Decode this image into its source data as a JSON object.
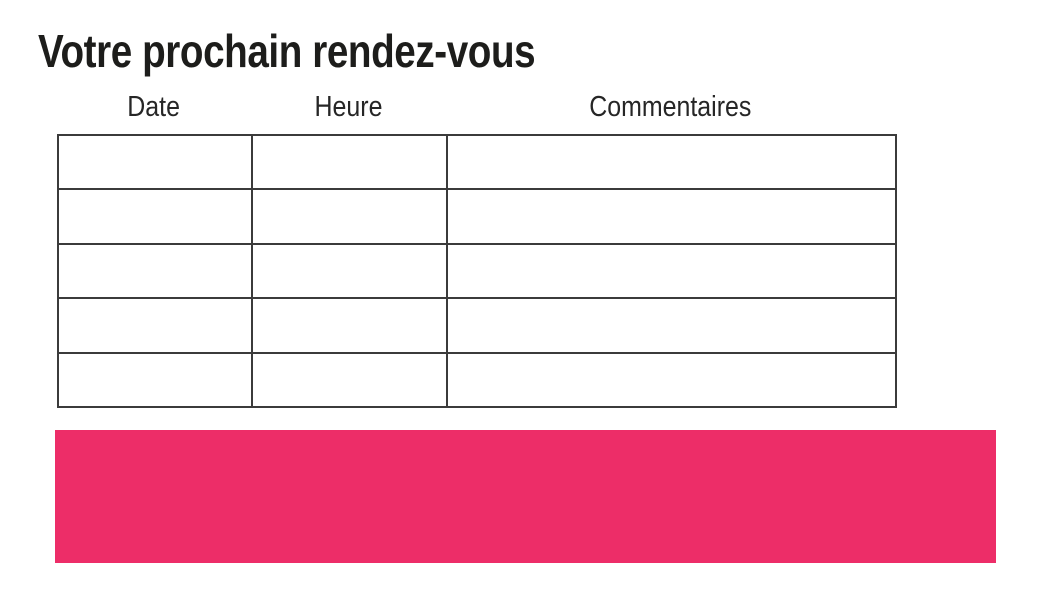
{
  "title": "Votre prochain rendez-vous",
  "table": {
    "columns": [
      {
        "label": "Date"
      },
      {
        "label": "Heure"
      },
      {
        "label": "Commentaires"
      }
    ],
    "rows": [
      {
        "date": "",
        "heure": "",
        "commentaires": ""
      },
      {
        "date": "",
        "heure": "",
        "commentaires": ""
      },
      {
        "date": "",
        "heure": "",
        "commentaires": ""
      },
      {
        "date": "",
        "heure": "",
        "commentaires": ""
      },
      {
        "date": "",
        "heure": "",
        "commentaires": ""
      }
    ]
  },
  "banner": {
    "text": ""
  },
  "colors": {
    "accent": "#ED2D68",
    "table_border": "#3B3B3B",
    "text": "#1D1D1B"
  }
}
